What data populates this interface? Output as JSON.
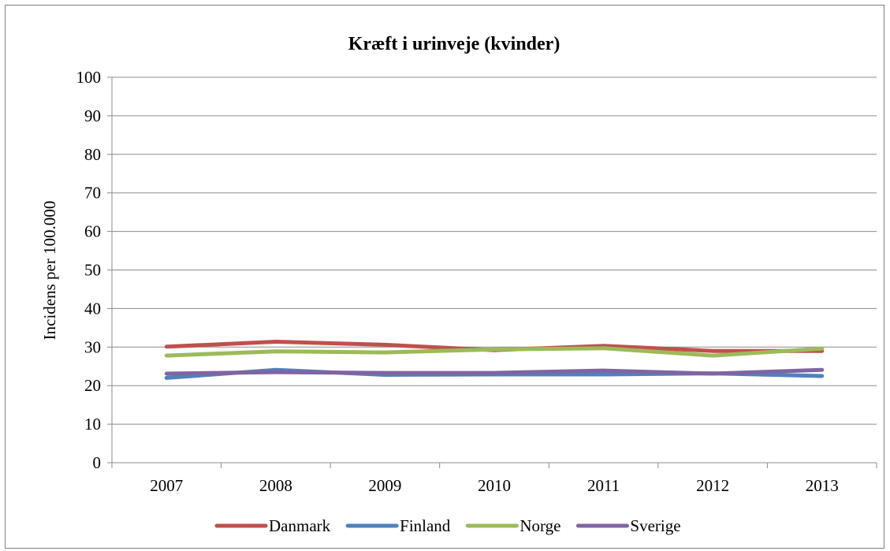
{
  "chart_data": {
    "type": "line",
    "title": "Kræft i urinveje (kvinder)",
    "xlabel": "",
    "ylabel": "Incidens per 100.000",
    "categories": [
      "2007",
      "2008",
      "2009",
      "2010",
      "2011",
      "2012",
      "2013"
    ],
    "ylim": [
      0,
      100
    ],
    "yticks": [
      0,
      10,
      20,
      30,
      40,
      50,
      60,
      70,
      80,
      90,
      100
    ],
    "grid": true,
    "legend": "bottom",
    "series": [
      {
        "name": "Danmark",
        "color": "#c0504d",
        "values": [
          30.1,
          31.4,
          30.6,
          29.2,
          30.3,
          29.0,
          29.0
        ]
      },
      {
        "name": "Finland",
        "color": "#4f81bd",
        "values": [
          22.0,
          24.1,
          22.8,
          22.9,
          22.9,
          23.2,
          22.5
        ]
      },
      {
        "name": "Norge",
        "color": "#9bbb59",
        "values": [
          27.8,
          28.9,
          28.6,
          29.4,
          29.7,
          27.8,
          29.6
        ]
      },
      {
        "name": "Sverige",
        "color": "#8064a2",
        "values": [
          23.1,
          23.5,
          23.3,
          23.3,
          23.9,
          23.1,
          24.1
        ]
      }
    ]
  }
}
